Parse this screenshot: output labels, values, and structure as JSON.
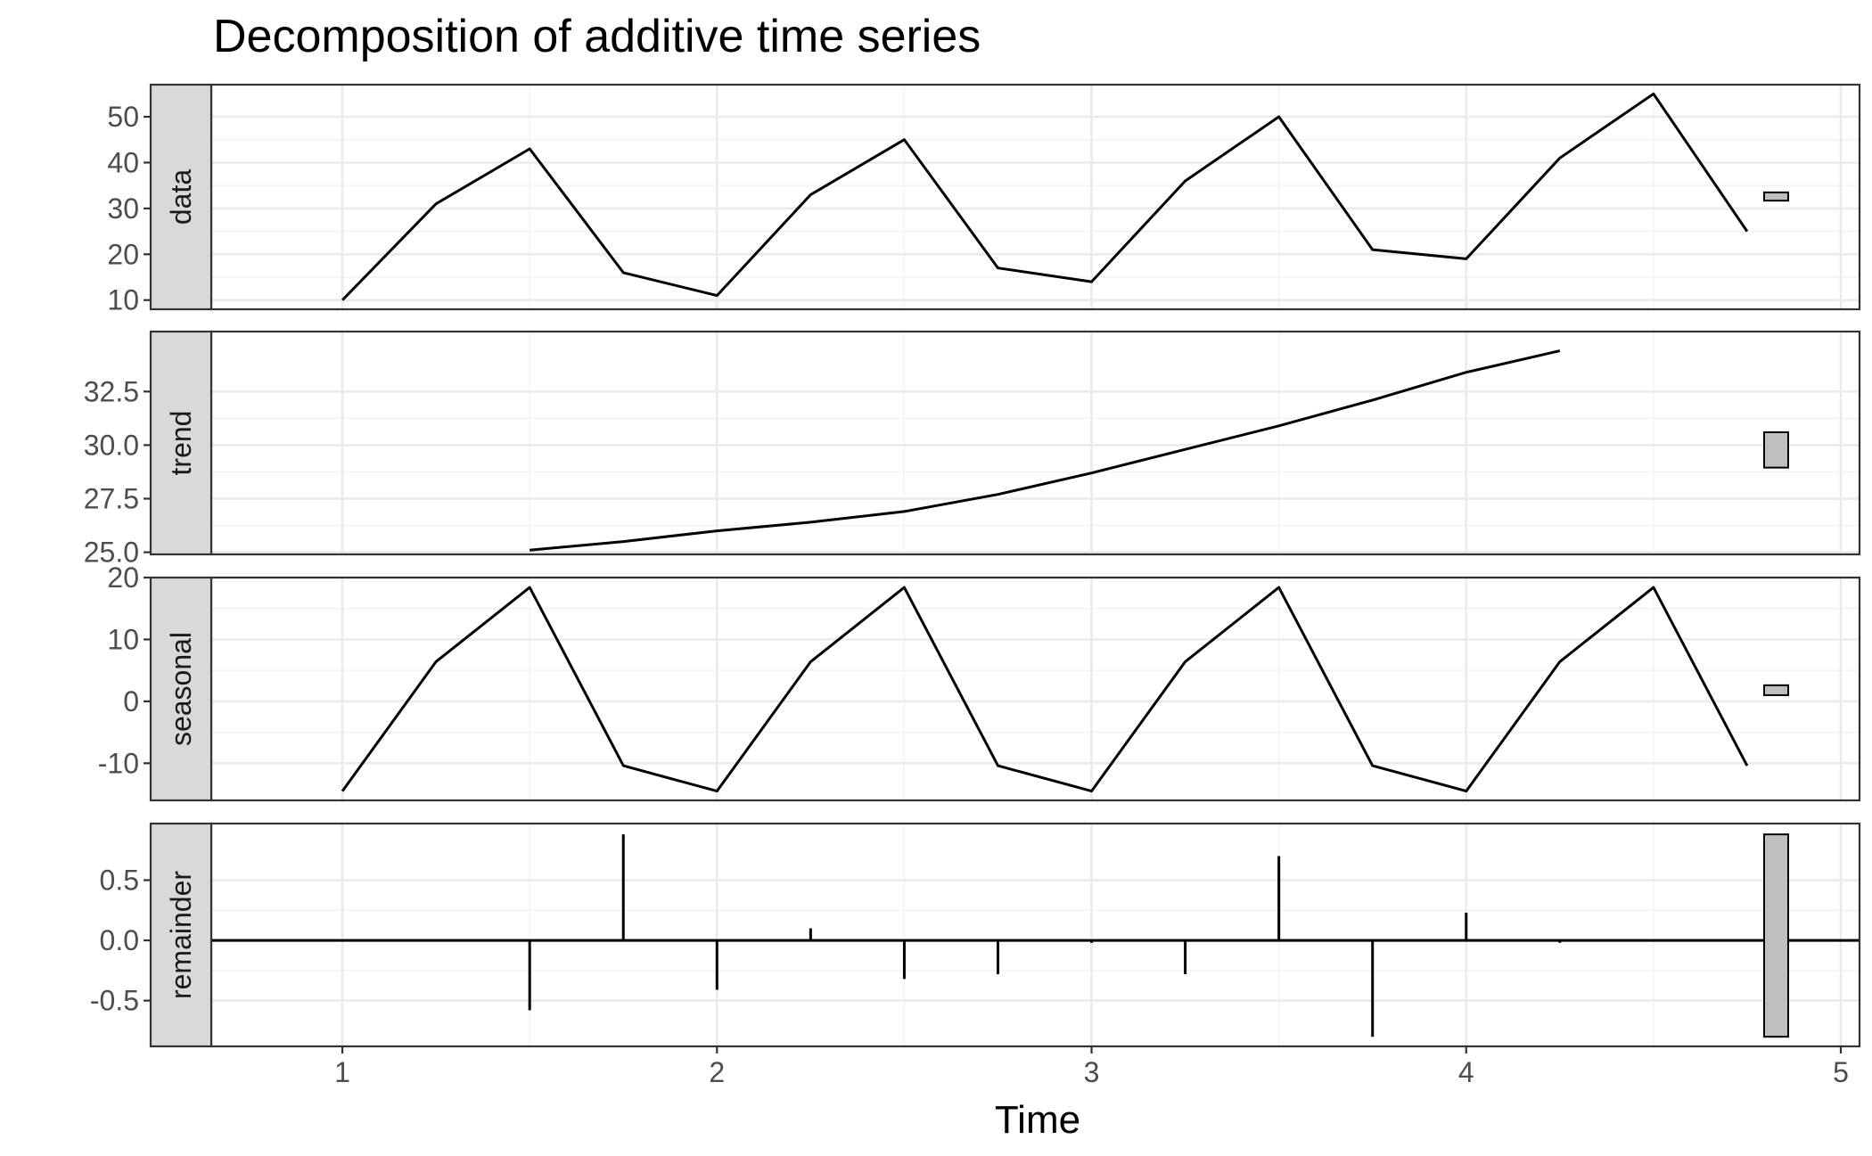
{
  "chart_data": {
    "type": "line",
    "title": "Decomposition of additive time series",
    "xlabel": "Time",
    "xlim": [
      0.65,
      5.05
    ],
    "x_ticks": [
      1,
      2,
      3,
      4,
      5
    ],
    "x_tick_labels": [
      "1",
      "2",
      "3",
      "4",
      "5"
    ],
    "grid": true,
    "panels": [
      {
        "name": "data",
        "strip_label": "data",
        "style": "line",
        "ylim": [
          8,
          57
        ],
        "y_ticks": [
          10,
          20,
          30,
          40,
          50
        ],
        "y_tick_labels": [
          "10",
          "20",
          "30",
          "40",
          "50"
        ],
        "scale_bar": [
          31.7,
          33.5
        ],
        "x": [
          1,
          1.25,
          1.5,
          1.75,
          2,
          2.25,
          2.5,
          2.75,
          3,
          3.25,
          3.5,
          3.75,
          4,
          4.25,
          4.5,
          4.75
        ],
        "values": [
          10,
          31,
          43,
          16,
          11,
          33,
          45,
          17,
          14,
          36,
          50,
          21,
          19,
          41,
          55,
          25
        ]
      },
      {
        "name": "trend",
        "strip_label": "trend",
        "style": "line",
        "ylim": [
          24.9,
          35.3
        ],
        "y_ticks": [
          25.0,
          27.5,
          30.0,
          32.5
        ],
        "y_tick_labels": [
          "25.0",
          "27.5",
          "30.0",
          "32.5"
        ],
        "scale_bar": [
          28.95,
          30.6
        ],
        "x": [
          1.5,
          1.75,
          2,
          2.25,
          2.5,
          2.75,
          3,
          3.25,
          3.5,
          3.75,
          4,
          4.25
        ],
        "values": [
          25.1,
          25.5,
          26.0,
          26.4,
          26.9,
          27.7,
          28.7,
          29.8,
          30.9,
          32.1,
          33.4,
          34.4
        ]
      },
      {
        "name": "seasonal",
        "strip_label": "seasonal",
        "style": "line",
        "ylim": [
          -16,
          20
        ],
        "y_ticks": [
          -10,
          0,
          10,
          20
        ],
        "y_tick_labels": [
          "-10",
          "0",
          "10",
          "20"
        ],
        "scale_bar": [
          1,
          2.6
        ],
        "x": [
          1,
          1.25,
          1.5,
          1.75,
          2,
          2.25,
          2.5,
          2.75,
          3,
          3.25,
          3.5,
          3.75,
          4,
          4.25,
          4.5,
          4.75
        ],
        "values": [
          -14.5,
          6.4,
          18.4,
          -10.4,
          -14.5,
          6.4,
          18.4,
          -10.4,
          -14.5,
          6.4,
          18.4,
          -10.4,
          -14.5,
          6.4,
          18.4,
          -10.4
        ]
      },
      {
        "name": "remainder",
        "strip_label": "remainder",
        "style": "bar",
        "ylim": [
          -0.88,
          0.97
        ],
        "y_ticks": [
          -0.5,
          0.0,
          0.5
        ],
        "y_tick_labels": [
          "-0.5",
          "0.0",
          "0.5"
        ],
        "scale_bar": [
          -0.8,
          0.88
        ],
        "x": [
          1.5,
          1.75,
          2,
          2.25,
          2.5,
          2.75,
          3,
          3.25,
          3.5,
          3.75,
          4,
          4.25
        ],
        "values": [
          -0.58,
          0.88,
          -0.41,
          0.1,
          -0.32,
          -0.28,
          -0.02,
          -0.28,
          0.7,
          -0.8,
          0.23,
          -0.02
        ]
      }
    ]
  }
}
